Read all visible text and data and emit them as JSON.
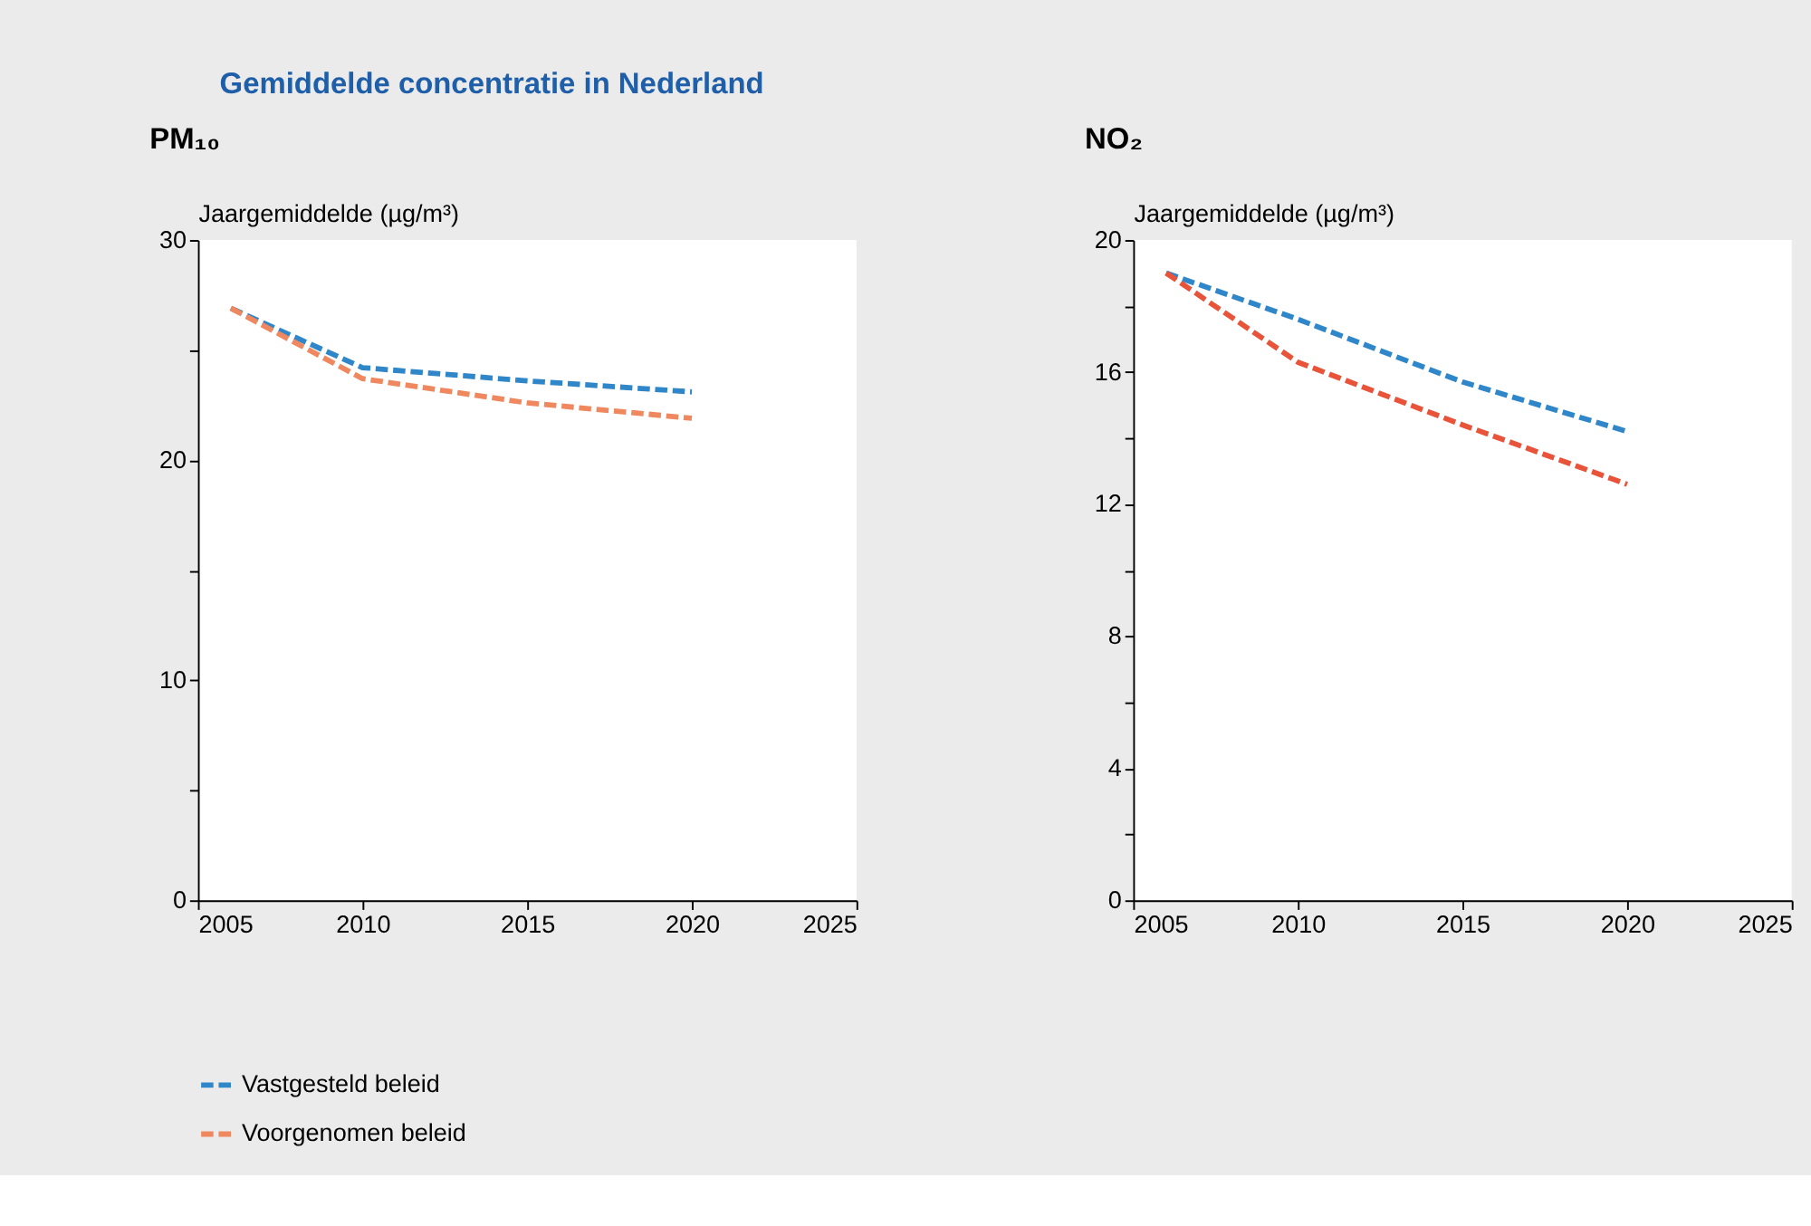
{
  "chart_data": [
    {
      "type": "line",
      "title": "PM₁₀",
      "ylabel": "Jaargemiddelde (µg/m³)",
      "annotations": [
        "Gemiddelde concentratie in Nederland"
      ],
      "x": [
        2006,
        2010,
        2015,
        2020
      ],
      "series": [
        {
          "name": "Vastgesteld beleid",
          "color": "#2f86c9",
          "values": [
            26.9,
            24.2,
            23.6,
            23.1
          ]
        },
        {
          "name": "Voorgenomen beleid",
          "color": "#f0885f",
          "values": [
            26.9,
            23.7,
            22.6,
            21.9
          ]
        }
      ],
      "xlim": [
        2005,
        2025
      ],
      "xticks": [
        2005,
        2010,
        2015,
        2020,
        2025
      ],
      "ylim": [
        0,
        30
      ],
      "yticks": [
        0,
        {
          "value": 5,
          "label": null
        },
        10,
        {
          "value": 15,
          "label": null
        },
        20,
        {
          "value": 25,
          "label": null
        },
        30
      ],
      "line_style": "dashed",
      "grid": false,
      "legend": "bottom left"
    },
    {
      "type": "line",
      "title": "NO₂",
      "ylabel": "Jaargemiddelde (µg/m³)",
      "x": [
        2006,
        2010,
        2015,
        2020
      ],
      "series": [
        {
          "color": "#2f86c9",
          "values": [
            19.0,
            17.6,
            15.7,
            14.2
          ]
        },
        {
          "color": "#e8533a",
          "values": [
            19.0,
            16.3,
            14.4,
            12.6
          ]
        }
      ],
      "xlim": [
        2005,
        2025
      ],
      "xticks": [
        2005,
        2010,
        2015,
        2020,
        2025
      ],
      "ylim": [
        0,
        20
      ],
      "yticks": [
        0,
        {
          "value": 2,
          "label": null
        },
        4,
        {
          "value": 6,
          "label": null
        },
        8,
        {
          "value": 10,
          "label": null
        },
        12,
        {
          "value": 14,
          "label": null
        },
        16,
        {
          "value": 18,
          "label": null
        },
        20
      ],
      "line_style": "dashed",
      "grid": false,
      "legend": false
    }
  ]
}
